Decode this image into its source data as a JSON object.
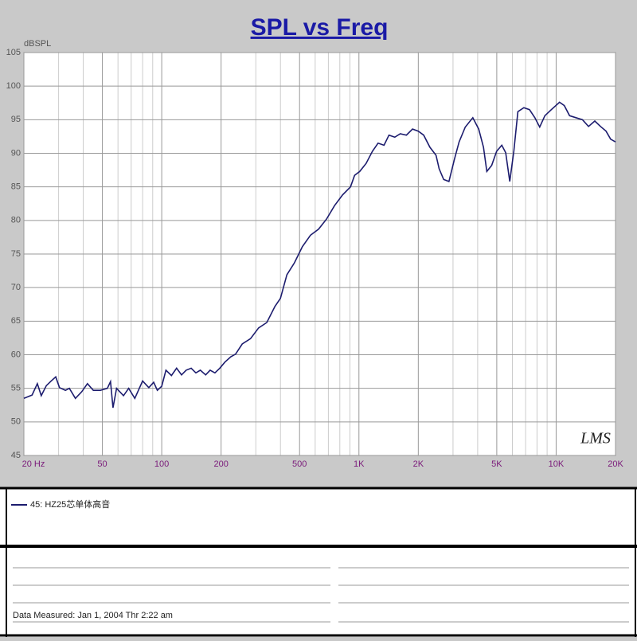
{
  "chart_data": {
    "type": "line",
    "title": "SPL vs Freq",
    "y_label": "dBSPL",
    "watermark": "LMS",
    "xscale": "log",
    "xlim": [
      20,
      20000
    ],
    "ylim": [
      45,
      105
    ],
    "xticks": [
      {
        "value": 20,
        "label": "20 Hz"
      },
      50,
      100,
      200,
      500,
      {
        "value": 1000,
        "label": "1K"
      },
      {
        "value": 2000,
        "label": "2K"
      },
      {
        "value": 5000,
        "label": "5K"
      },
      {
        "value": 10000,
        "label": "10K"
      },
      {
        "value": 20000,
        "label": "20K"
      }
    ],
    "xminor": [
      30,
      40,
      60,
      70,
      80,
      90,
      300,
      400,
      600,
      700,
      800,
      900,
      3000,
      4000,
      6000,
      7000,
      8000,
      9000
    ],
    "yticks": [
      45,
      50,
      55,
      60,
      65,
      70,
      75,
      80,
      85,
      90,
      95,
      100,
      105
    ],
    "grid": true,
    "series": [
      {
        "name": "45: HZ25芯单体高音",
        "color": "#1c1c6e",
        "x": [
          20,
          22,
          23.4,
          24.5,
          26,
          27.5,
          29,
          30.3,
          32.5,
          34,
          36.5,
          39.3,
          42,
          45,
          48.9,
          53,
          55,
          56.6,
          59,
          64,
          68,
          73,
          80,
          86,
          91,
          95,
          100,
          105,
          112,
          119,
          126,
          133,
          141,
          149,
          157,
          167,
          176,
          186,
          197,
          209,
          224,
          237,
          256,
          282,
          310,
          341,
          375,
          400,
          431,
          471,
          517,
          568,
          624,
          685,
          752,
          826,
          906,
          950,
          1010,
          1088,
          1170,
          1250,
          1340,
          1420,
          1520,
          1620,
          1740,
          1870,
          2000,
          2130,
          2290,
          2460,
          2550,
          2690,
          2860,
          3050,
          3220,
          3460,
          3780,
          4050,
          4280,
          4450,
          4710,
          4990,
          5300,
          5550,
          5820,
          6100,
          6400,
          6860,
          7330,
          7800,
          8250,
          8770,
          9450,
          10400,
          11000,
          11700,
          12600,
          13600,
          14600,
          15700,
          16800,
          17900,
          18900,
          20000
        ],
        "values": [
          53.5,
          54,
          55.7,
          53.9,
          55.4,
          56.1,
          56.7,
          55.1,
          54.7,
          55,
          53.5,
          54.5,
          55.7,
          54.7,
          54.7,
          55,
          56,
          52.1,
          55,
          53.9,
          55,
          53.5,
          56.1,
          55.1,
          55.9,
          54.7,
          55.3,
          57.7,
          56.9,
          58,
          57,
          57.7,
          58,
          57.3,
          57.7,
          57,
          57.7,
          57.3,
          58,
          58.9,
          59.7,
          60.1,
          61.6,
          62.4,
          64,
          64.8,
          67.2,
          68.4,
          71.9,
          73.7,
          76.1,
          77.8,
          78.7,
          80.2,
          82.2,
          83.8,
          85,
          86.7,
          87.3,
          88.5,
          90.3,
          91.5,
          91.2,
          92.7,
          92.4,
          92.9,
          92.7,
          93.6,
          93.3,
          92.7,
          90.9,
          89.7,
          87.7,
          86.1,
          85.8,
          89.1,
          91.7,
          93.9,
          95.3,
          93.6,
          90.9,
          87.3,
          88.2,
          90.3,
          91.2,
          90.1,
          85.8,
          90.3,
          96.2,
          96.8,
          96.5,
          95.3,
          93.9,
          95.6,
          96.5,
          97.6,
          97.1,
          95.6,
          95.3,
          95,
          94,
          94.8,
          94,
          93.3,
          92.1,
          91.7
        ]
      }
    ]
  },
  "footer": {
    "measured": "Data Measured: Jan  1, 2004  Thr  2:22 am"
  }
}
